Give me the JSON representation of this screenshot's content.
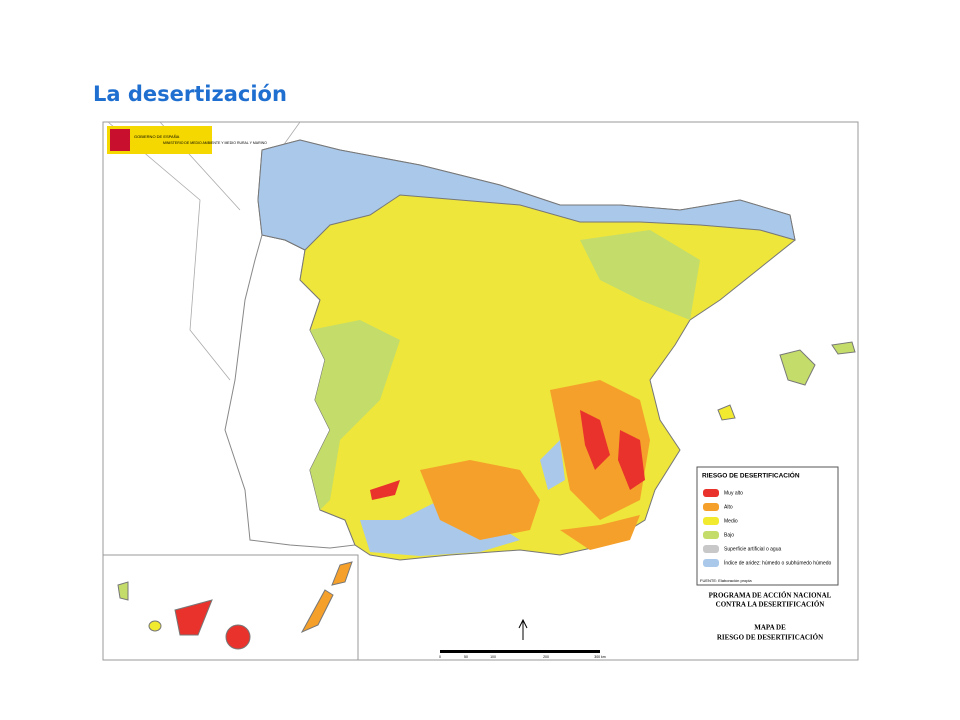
{
  "title": "La desertización",
  "map": {
    "header": {
      "government": "GOBIERNO DE ESPAÑA",
      "ministry": "MINISTERIO DE MEDIO AMBIENTE Y MEDIO RURAL Y MARINO"
    },
    "legend": {
      "title": "RIESGO DE DESERTIFICACIÓN",
      "items": [
        {
          "label": "Muy alto",
          "color": "#e8322b"
        },
        {
          "label": "Alto",
          "color": "#f5a02a"
        },
        {
          "label": "Medio",
          "color": "#f2ea2e"
        },
        {
          "label": "Bajo",
          "color": "#c4dc6a"
        },
        {
          "label": "Superficie artificial o agua",
          "color": "#c8c8c8"
        },
        {
          "label": "Índice de aridez: húmedo o subhúmedo húmedo",
          "color": "#a9c8ea"
        }
      ],
      "source": "FUENTE: Elaboración propia"
    },
    "program": [
      "PROGRAMA DE ACCIÓN NACIONAL",
      "CONTRA LA DESERTIFICACIÓN"
    ],
    "map_title": [
      "MAPA DE",
      "RIESGO DE DESERTIFICACIÓN"
    ],
    "scale": [
      "0",
      "50",
      "100",
      "200",
      "300 km"
    ]
  }
}
